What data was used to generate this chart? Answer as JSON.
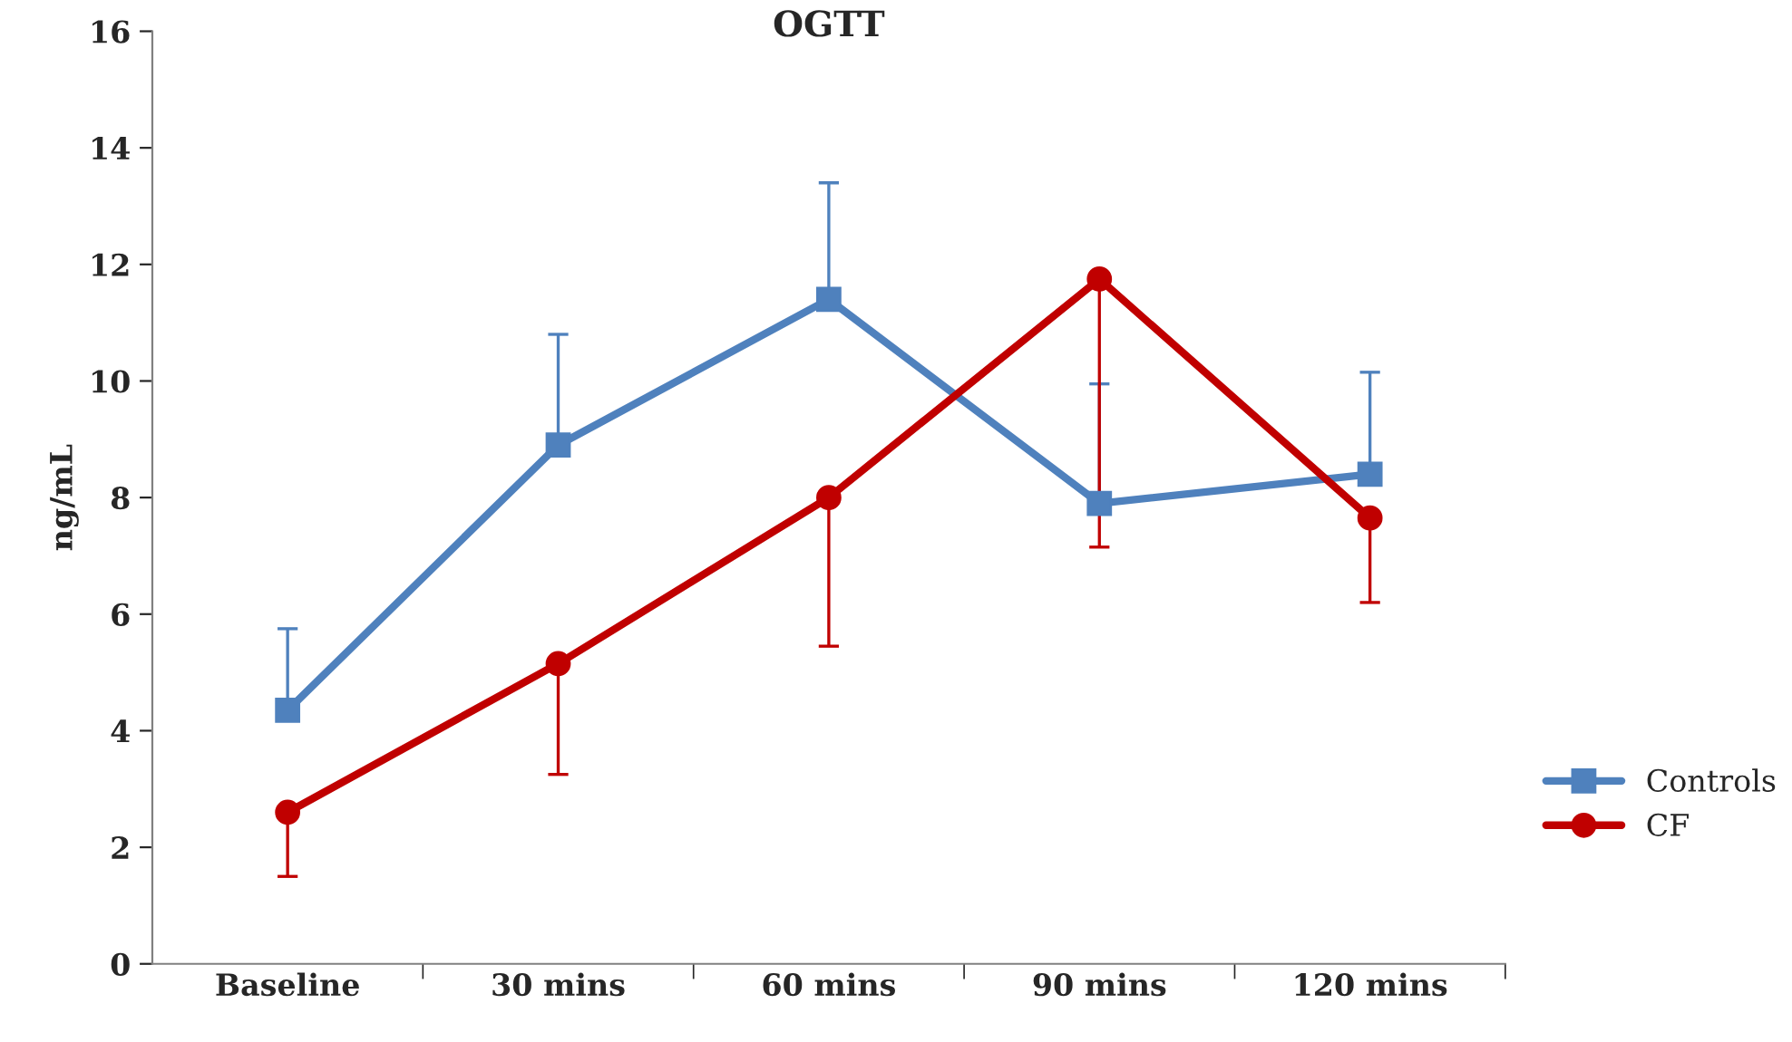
{
  "chart_data": {
    "type": "line",
    "title": "OGTT",
    "ylabel": "ng/mL",
    "categories": [
      "Baseline",
      "30 mins",
      "60 mins",
      "90 mins",
      "120 mins"
    ],
    "series": [
      {
        "name": "Controls",
        "color": "#4f81bd",
        "marker": "square",
        "values": [
          4.35,
          8.9,
          11.4,
          7.9,
          8.4
        ],
        "errors": [
          [
            4.35,
            5.75
          ],
          [
            8.9,
            10.8
          ],
          [
            11.4,
            13.4
          ],
          [
            7.9,
            9.95
          ],
          [
            8.4,
            10.15
          ]
        ]
      },
      {
        "name": "CF",
        "color": "#c00000",
        "marker": "circle",
        "values": [
          2.6,
          5.15,
          8.0,
          11.75,
          7.65
        ],
        "errors": [
          [
            1.5,
            2.6
          ],
          [
            3.25,
            5.15
          ],
          [
            5.45,
            8.0
          ],
          [
            7.15,
            11.75
          ],
          [
            6.2,
            7.65
          ]
        ]
      }
    ],
    "ylim": [
      0,
      16
    ],
    "yticks": [
      0,
      2,
      4,
      6,
      8,
      10,
      12,
      14,
      16
    ],
    "grid": false,
    "legend": "right"
  }
}
